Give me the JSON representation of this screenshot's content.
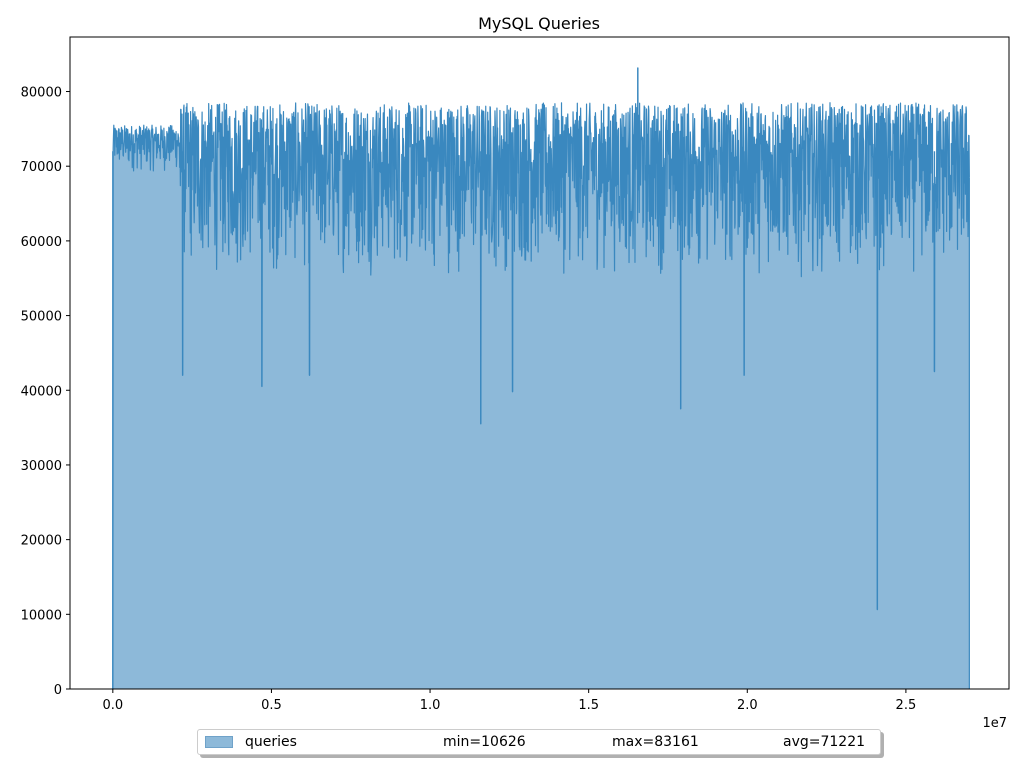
{
  "chart_data": {
    "type": "area",
    "title": "MySQL Queries",
    "xlabel": "",
    "ylabel": "",
    "x_scale_label": "1e7",
    "xlim": [
      -0.135,
      2.825
    ],
    "ylim": [
      0,
      87300
    ],
    "x_ticks": [
      0.0,
      0.5,
      1.0,
      1.5,
      2.0,
      2.5
    ],
    "x_tick_labels": [
      "0.0",
      "0.5",
      "1.0",
      "1.5",
      "2.0",
      "2.5"
    ],
    "y_ticks": [
      0,
      10000,
      20000,
      30000,
      40000,
      50000,
      60000,
      70000,
      80000
    ],
    "y_tick_labels": [
      "0",
      "10000",
      "20000",
      "30000",
      "40000",
      "50000",
      "60000",
      "70000",
      "80000"
    ],
    "grid": false,
    "legend_placement": "bottom-center",
    "colors": {
      "fill": "#8db9d9",
      "line": "#3a88bf",
      "frame": "#000000"
    },
    "series": [
      {
        "name": "queries",
        "stats": {
          "min": 10626,
          "max": 83161,
          "avg": 71221
        },
        "x_range": [
          0.0,
          2.7
        ],
        "segments": [
          {
            "x": [
              0.0,
              0.21
            ],
            "y_low": 69000,
            "y_high": 75500,
            "description": "ramp plateau"
          },
          {
            "x": [
              0.21,
              2.7
            ],
            "y_low": 55000,
            "y_high": 78500,
            "description": "high-variance phase"
          }
        ],
        "spikes": [
          {
            "x": 0.0,
            "y": 0
          },
          {
            "x": 1.16,
            "y": 35500
          },
          {
            "x": 1.655,
            "y": 83161
          },
          {
            "x": 1.79,
            "y": 37500
          },
          {
            "x": 2.41,
            "y": 10626
          },
          {
            "x": 0.47,
            "y": 40500
          },
          {
            "x": 1.26,
            "y": 39800
          },
          {
            "x": 0.22,
            "y": 42000
          },
          {
            "x": 0.62,
            "y": 42000
          },
          {
            "x": 1.99,
            "y": 42000
          },
          {
            "x": 2.59,
            "y": 42500
          }
        ]
      }
    ]
  },
  "legend": {
    "name": "queries",
    "min_text": "min=10626",
    "max_text": "max=83161",
    "avg_text": "avg=71221"
  }
}
